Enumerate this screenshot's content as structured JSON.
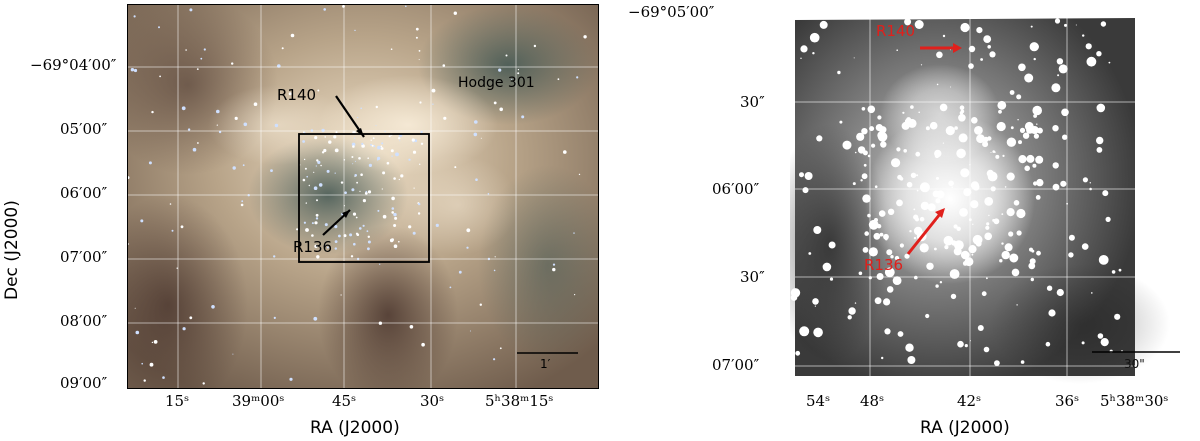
{
  "left_panel": {
    "y_axis_title": "Dec (J2000)",
    "x_axis_title": "RA (J2000)",
    "y_ticks": [
      "−69°04′00″",
      "05′00″",
      "06′00″",
      "07′00″",
      "08′00″",
      "09′00″"
    ],
    "x_ticks": [
      "15ˢ",
      "39ᵐ00ˢ",
      "45ˢ",
      "30ˢ",
      "5ʰ38ᵐ15ˢ"
    ],
    "annotations": {
      "r140": "R140",
      "r136": "R136",
      "hodge": "Hodge 301"
    },
    "scale_bar": "1′"
  },
  "right_panel": {
    "x_axis_title": "RA (J2000)",
    "y_ticks": [
      "−69°05′00″",
      "30″",
      "06′00″",
      "30″",
      "07′00″"
    ],
    "x_ticks": [
      "54ˢ",
      "48ˢ",
      "42ˢ",
      "36ˢ",
      "5ʰ38ᵐ30ˢ"
    ],
    "annotations": {
      "r140": "R140",
      "r136": "R136"
    },
    "scale_bar": "30\""
  },
  "colors": {
    "annotation_red": "#e0201c",
    "grid": "#ffffff"
  }
}
